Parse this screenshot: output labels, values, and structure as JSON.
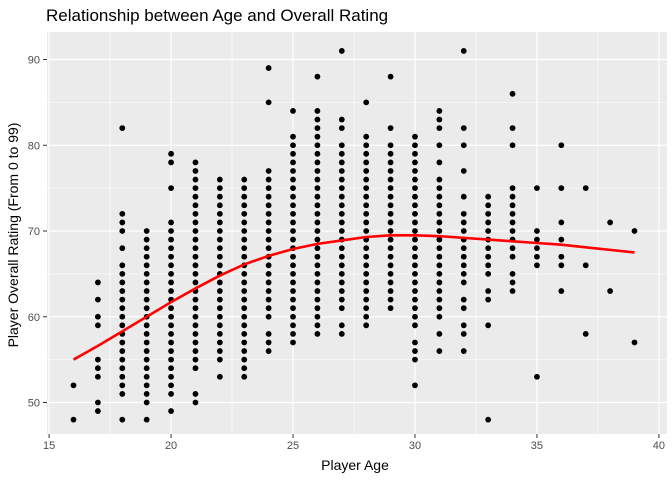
{
  "chart_data": {
    "type": "scatter",
    "title": "Relationship between Age and Overall Rating",
    "xlabel": "Player Age",
    "ylabel": "Player Overall Rating (From 0 to 99)",
    "xlim": [
      15,
      40
    ],
    "ylim": [
      46,
      93
    ],
    "xticks": [
      15,
      20,
      25,
      30,
      35,
      40
    ],
    "yticks": [
      50,
      60,
      70,
      80,
      90
    ],
    "grid": true,
    "colors": {
      "panel": "#ebebeb",
      "grid_major": "#ffffff",
      "points": "#000000",
      "trend": "#ff0000"
    },
    "points_by_age": [
      {
        "x": 16,
        "y": [
          48,
          52
        ]
      },
      {
        "x": 17,
        "y": [
          49,
          50,
          53,
          54,
          55,
          59,
          60,
          62,
          64
        ]
      },
      {
        "x": 18,
        "y": [
          48,
          51,
          52,
          53,
          54,
          55,
          56,
          57,
          58,
          59,
          60,
          61,
          62,
          63,
          64,
          65,
          66,
          68,
          70,
          71,
          72,
          82
        ]
      },
      {
        "x": 19,
        "y": [
          48,
          50,
          51,
          52,
          53,
          54,
          55,
          56,
          57,
          58,
          59,
          60,
          61,
          62,
          63,
          64,
          65,
          66,
          67,
          68,
          69,
          70
        ]
      },
      {
        "x": 20,
        "y": [
          49,
          51,
          52,
          53,
          54,
          55,
          56,
          57,
          58,
          59,
          60,
          61,
          62,
          63,
          64,
          65,
          66,
          67,
          68,
          69,
          70,
          71,
          75,
          78,
          79
        ]
      },
      {
        "x": 21,
        "y": [
          50,
          51,
          54,
          55,
          56,
          57,
          58,
          59,
          60,
          61,
          62,
          63,
          64,
          65,
          66,
          67,
          68,
          69,
          70,
          71,
          72,
          73,
          74,
          75,
          76,
          77,
          78
        ]
      },
      {
        "x": 22,
        "y": [
          53,
          55,
          56,
          57,
          58,
          59,
          60,
          61,
          62,
          63,
          64,
          65,
          66,
          67,
          68,
          69,
          70,
          71,
          72,
          73,
          74,
          75,
          76
        ]
      },
      {
        "x": 23,
        "y": [
          53,
          54,
          55,
          56,
          57,
          58,
          59,
          60,
          61,
          62,
          63,
          64,
          65,
          66,
          67,
          68,
          69,
          70,
          71,
          72,
          73,
          74,
          75,
          76
        ]
      },
      {
        "x": 24,
        "y": [
          56,
          57,
          58,
          60,
          61,
          62,
          63,
          64,
          65,
          66,
          67,
          68,
          69,
          70,
          71,
          72,
          73,
          74,
          75,
          76,
          77,
          85,
          89
        ]
      },
      {
        "x": 25,
        "y": [
          57,
          58,
          59,
          60,
          61,
          62,
          63,
          64,
          65,
          66,
          67,
          68,
          69,
          70,
          71,
          72,
          73,
          74,
          75,
          76,
          77,
          78,
          79,
          80,
          81,
          84
        ]
      },
      {
        "x": 26,
        "y": [
          58,
          59,
          60,
          61,
          62,
          63,
          64,
          65,
          66,
          67,
          68,
          69,
          70,
          71,
          72,
          73,
          74,
          75,
          76,
          77,
          78,
          79,
          80,
          81,
          82,
          83,
          84,
          88
        ]
      },
      {
        "x": 27,
        "y": [
          58,
          59,
          61,
          62,
          63,
          64,
          65,
          66,
          67,
          68,
          69,
          70,
          71,
          72,
          73,
          74,
          75,
          76,
          77,
          78,
          79,
          80,
          82,
          83,
          91
        ]
      },
      {
        "x": 28,
        "y": [
          59,
          60,
          61,
          62,
          63,
          64,
          65,
          66,
          67,
          68,
          69,
          70,
          71,
          72,
          73,
          74,
          75,
          76,
          77,
          78,
          79,
          80,
          81,
          85
        ]
      },
      {
        "x": 29,
        "y": [
          61,
          62,
          63,
          64,
          65,
          66,
          67,
          68,
          69,
          70,
          71,
          72,
          73,
          74,
          75,
          76,
          77,
          78,
          79,
          80,
          82,
          88
        ]
      },
      {
        "x": 30,
        "y": [
          52,
          55,
          56,
          57,
          59,
          60,
          61,
          62,
          63,
          64,
          65,
          66,
          67,
          68,
          69,
          70,
          71,
          72,
          73,
          74,
          75,
          76,
          77,
          78,
          79,
          80,
          81
        ]
      },
      {
        "x": 31,
        "y": [
          56,
          58,
          60,
          61,
          62,
          63,
          64,
          65,
          66,
          67,
          68,
          69,
          70,
          71,
          72,
          73,
          74,
          75,
          76,
          78,
          80,
          82,
          83,
          84
        ]
      },
      {
        "x": 32,
        "y": [
          56,
          58,
          59,
          61,
          62,
          64,
          65,
          66,
          67,
          68,
          69,
          70,
          71,
          72,
          74,
          77,
          80,
          82,
          91
        ]
      },
      {
        "x": 33,
        "y": [
          48,
          59,
          62,
          63,
          65,
          66,
          67,
          68,
          69,
          70,
          71,
          72,
          73,
          74
        ]
      },
      {
        "x": 34,
        "y": [
          63,
          64,
          65,
          67,
          68,
          69,
          70,
          71,
          72,
          73,
          74,
          75,
          80,
          82,
          86
        ]
      },
      {
        "x": 35,
        "y": [
          53,
          66,
          67,
          68,
          69,
          70,
          75
        ]
      },
      {
        "x": 36,
        "y": [
          63,
          66,
          67,
          69,
          71,
          75,
          80
        ]
      },
      {
        "x": 37,
        "y": [
          58,
          66,
          75
        ]
      },
      {
        "x": 38,
        "y": [
          63,
          71
        ]
      },
      {
        "x": 39,
        "y": [
          57,
          70
        ]
      }
    ],
    "trend_line": {
      "x": [
        16,
        17,
        18,
        19,
        20,
        21,
        22,
        23,
        24,
        25,
        26,
        27,
        28,
        29,
        30,
        31,
        32,
        33,
        34,
        35,
        36,
        37,
        38,
        39
      ],
      "y": [
        55.0,
        56.6,
        58.3,
        60.0,
        61.7,
        63.3,
        64.8,
        66.1,
        67.1,
        67.9,
        68.5,
        68.9,
        69.3,
        69.5,
        69.5,
        69.4,
        69.2,
        69.0,
        68.8,
        68.6,
        68.4,
        68.1,
        67.8,
        67.5
      ]
    }
  }
}
